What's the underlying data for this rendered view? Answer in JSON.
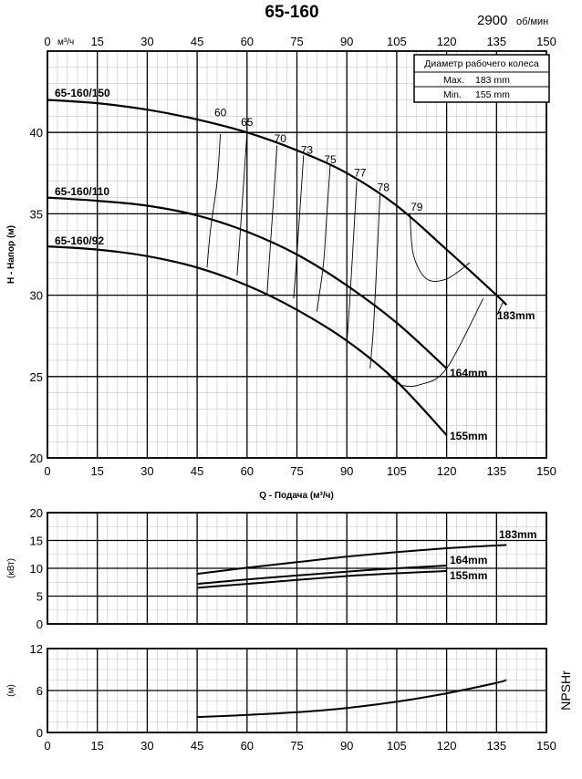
{
  "page": {
    "title": "65-160",
    "speed_value": "2900",
    "speed_unit": "об/мин"
  },
  "legend": {
    "title": "Диаметр рабочего колеса",
    "rows": [
      {
        "label": "Max.",
        "value": "183 mm"
      },
      {
        "label": "Min.",
        "value": "155 mm"
      }
    ]
  },
  "chart_data": [
    {
      "type": "line",
      "id": "head",
      "xlabel": "Q - Подача (м³/ч)",
      "top_x_unit": "м³/ч",
      "ylabel": "H - Напор (м)",
      "xlim": [
        0,
        150
      ],
      "ylim": [
        20,
        45
      ],
      "x_ticks": [
        0,
        15,
        30,
        45,
        60,
        75,
        90,
        105,
        120,
        135,
        150
      ],
      "x_ticks_top": [
        0,
        15,
        30,
        45,
        60,
        75,
        90,
        105,
        120,
        135,
        150
      ],
      "y_ticks": [
        20,
        25,
        30,
        35,
        40
      ],
      "grid": true,
      "series": [
        {
          "name": "65-160/150",
          "end_label": "183mm",
          "x": [
            0,
            15,
            30,
            45,
            60,
            75,
            90,
            105,
            120,
            135,
            138
          ],
          "y": [
            42,
            41.8,
            41.4,
            40.8,
            40,
            38.9,
            37.5,
            35.5,
            32.8,
            30,
            29.4
          ]
        },
        {
          "name": "65-160/110",
          "end_label": "164mm",
          "x": [
            0,
            15,
            30,
            45,
            60,
            75,
            90,
            105,
            120
          ],
          "y": [
            36,
            35.8,
            35.5,
            34.9,
            33.9,
            32.5,
            30.6,
            28.3,
            25.5
          ]
        },
        {
          "name": "65-160/92",
          "end_label": "155mm",
          "x": [
            0,
            15,
            30,
            45,
            60,
            75,
            90,
            105,
            120
          ],
          "y": [
            33,
            32.8,
            32.4,
            31.7,
            30.6,
            29.1,
            27.2,
            24.7,
            21.4
          ]
        }
      ],
      "efficiency": [
        {
          "label": "60",
          "x": [
            52,
            51,
            49,
            48
          ],
          "y": [
            39.9,
            37,
            34,
            31.7
          ],
          "label_x": 52,
          "label_y": 41
        },
        {
          "label": "65",
          "x": [
            60,
            59,
            58,
            57
          ],
          "y": [
            40,
            37,
            34,
            31.2
          ],
          "label_x": 60,
          "label_y": 40.4
        },
        {
          "label": "70",
          "x": [
            69,
            68,
            67,
            66
          ],
          "y": [
            39.2,
            36,
            33,
            30
          ],
          "label_x": 70,
          "label_y": 39.4
        },
        {
          "label": "73",
          "x": [
            77,
            76,
            75,
            74
          ],
          "y": [
            38.6,
            35.5,
            32.5,
            29.8
          ],
          "label_x": 78,
          "label_y": 38.7
        },
        {
          "label": "75",
          "x": [
            85,
            84,
            83,
            81
          ],
          "y": [
            38,
            35,
            32,
            29
          ],
          "label_x": 85,
          "label_y": 38.1
        },
        {
          "label": "77",
          "x": [
            93,
            92,
            91,
            90
          ],
          "y": [
            37,
            33.5,
            30,
            27
          ],
          "label_x": 94,
          "label_y": 37.3
        },
        {
          "label": "78",
          "x": [
            100,
            99,
            98,
            97
          ],
          "y": [
            36.3,
            32,
            28,
            25.5
          ],
          "label_x": 101,
          "label_y": 36.4
        },
        {
          "label": "79",
          "x": [
            109,
            110,
            114,
            120,
            127
          ],
          "y": [
            35,
            32.5,
            31,
            31,
            32
          ],
          "label_x": 111,
          "label_y": 35.2
        },
        {
          "label": "",
          "x": [
            102,
            106,
            112,
            120,
            131
          ],
          "y": [
            25.2,
            24.5,
            24.5,
            25.5,
            29.8
          ]
        }
      ]
    },
    {
      "type": "line",
      "id": "power",
      "ylabel": "(кВт)",
      "xlim": [
        0,
        150
      ],
      "ylim": [
        0,
        20
      ],
      "y_ticks": [
        0,
        5,
        10,
        15,
        20
      ],
      "grid": true,
      "series": [
        {
          "name": "183mm",
          "x": [
            45,
            60,
            75,
            90,
            105,
            120,
            135,
            138
          ],
          "y": [
            9,
            10.1,
            11.1,
            12.1,
            12.9,
            13.6,
            14.1,
            14.2
          ]
        },
        {
          "name": "164mm",
          "x": [
            45,
            60,
            75,
            90,
            105,
            120
          ],
          "y": [
            7.2,
            8,
            8.7,
            9.4,
            10,
            10.5
          ]
        },
        {
          "name": "155mm",
          "x": [
            45,
            60,
            75,
            90,
            105,
            120
          ],
          "y": [
            6.5,
            7.2,
            7.9,
            8.6,
            9.1,
            9.5
          ]
        }
      ]
    },
    {
      "type": "line",
      "id": "npsh",
      "ylabel": "(м)",
      "side_label": "NPSHr",
      "xlim": [
        0,
        150
      ],
      "ylim": [
        0,
        12
      ],
      "y_ticks": [
        0,
        6,
        12
      ],
      "x_ticks": [
        0,
        15,
        30,
        45,
        60,
        75,
        90,
        105,
        120,
        135,
        150
      ],
      "grid": true,
      "series": [
        {
          "name": "NPSHr",
          "x": [
            45,
            60,
            75,
            90,
            105,
            120,
            135,
            138
          ],
          "y": [
            2.2,
            2.5,
            2.9,
            3.5,
            4.4,
            5.6,
            7.1,
            7.5
          ]
        }
      ]
    }
  ]
}
